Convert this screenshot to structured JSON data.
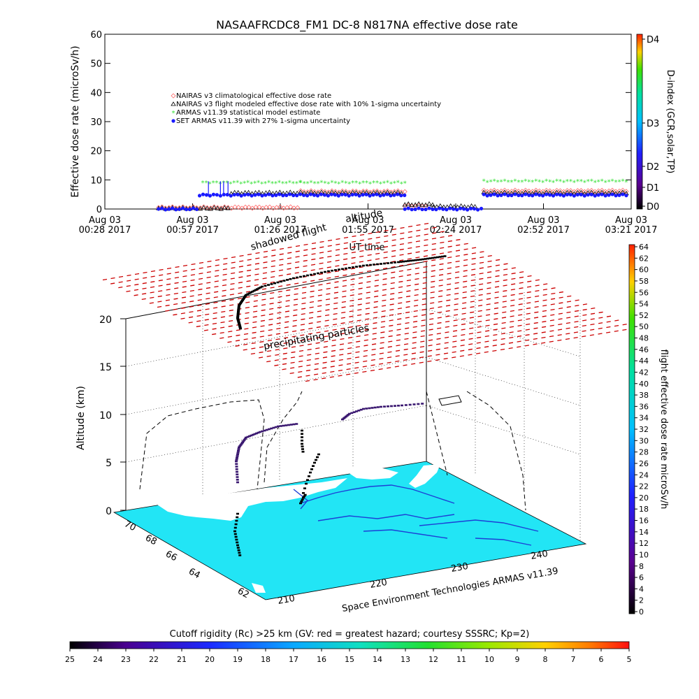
{
  "title": "NASAAFRCDC8_FM1 DC-8    N817NA effective dose rate",
  "xlabel": "UT time",
  "bottom_caption": "Cutoff rigidity (Rc) >25 km (GV: red = greatest hazard; courtesy SSSRC; Kp=2)",
  "credit": "Space Environment Technologies ARMAS v11.39",
  "annot_precip": "precipitating particles",
  "annot_flight": "altitude",
  "annot_shadow": "shadowed flight",
  "threed": {
    "zlabel": "Altitude (km)",
    "z_ticks": [
      "0",
      "5",
      "10",
      "15",
      "20"
    ],
    "lat_ticks": [
      "70",
      "68",
      "66",
      "64",
      "62"
    ],
    "lon_ticks": [
      "210",
      "220",
      "230",
      "240"
    ]
  },
  "colors": {
    "naires_clim": "#ff6a6a",
    "naires_flight": "#000000",
    "armas_stat": "#33e033",
    "set_armas": "#1a1aff",
    "grid_marker": "#cc0000",
    "ocean": "#22e5f5",
    "land": "#ffffff"
  },
  "chart_data": [
    {
      "type": "scatter",
      "ylabel": "Effective dose rate (microSv/h)",
      "ylim": [
        0,
        60
      ],
      "y_ticks": [
        "0",
        "10",
        "20",
        "30",
        "40",
        "50",
        "60"
      ],
      "x_ticks": [
        {
          "top": "Aug 03",
          "bottom": "00:28 2017"
        },
        {
          "top": "Aug 03",
          "bottom": "00:57 2017"
        },
        {
          "top": "Aug 03",
          "bottom": "01:26 2017"
        },
        {
          "top": "Aug 03",
          "bottom": "01:55 2017"
        },
        {
          "top": "Aug 03",
          "bottom": "02:24 2017"
        },
        {
          "top": "Aug 03",
          "bottom": "02:52 2017"
        },
        {
          "top": "Aug 03",
          "bottom": "03:21 2017"
        }
      ],
      "legend_position": "upper-left",
      "series": [
        {
          "name": "NAIRAS v3 climatological effective dose rate",
          "marker": "diamond",
          "segments": [
            [
              0.85,
              3.1,
              0.5
            ],
            [
              3.1,
              4.75,
              6.0
            ],
            [
              4.75,
              5.1,
              1.0
            ],
            [
              6.0,
              8.3,
              6.2
            ]
          ]
        },
        {
          "name": "NAIRAS v3 flight modeled effective dose rate with 10% 1-sigma uncertainty",
          "marker": "triangle",
          "segments": [
            [
              0.85,
              2.0,
              0.2
            ],
            [
              2.0,
              4.75,
              5.5
            ],
            [
              4.75,
              5.2,
              1.5
            ],
            [
              5.2,
              5.9,
              0.8
            ],
            [
              6.0,
              8.3,
              5.5
            ]
          ]
        },
        {
          "name": "ARMAS v11.39 statistical model estimate",
          "marker": "asterisk",
          "segments": [
            [
              1.55,
              3.1,
              9.0
            ],
            [
              3.1,
              4.75,
              9.0
            ],
            [
              6.0,
              8.3,
              9.5
            ]
          ]
        },
        {
          "name": "SET ARMAS v11.39 with 27% 1-sigma uncertainty",
          "marker": "dot",
          "segments": [
            [
              0.85,
              1.5,
              0.0
            ],
            [
              1.5,
              4.75,
              4.8
            ],
            [
              4.75,
              6.0,
              0.0
            ],
            [
              6.0,
              8.3,
              4.8
            ]
          ]
        }
      ],
      "y2label": "D-index (GCR,solar,TP)",
      "y2_ticks": [
        "D0",
        "D1",
        "D2",
        "D3",
        "D4"
      ]
    },
    {
      "type": "heatmap",
      "colorbar_label": "flight effective dose rate microSv/h",
      "range": [
        0,
        64
      ],
      "ticks": [
        "0",
        "2",
        "4",
        "6",
        "8",
        "10",
        "12",
        "14",
        "16",
        "18",
        "20",
        "22",
        "24",
        "26",
        "28",
        "30",
        "32",
        "34",
        "36",
        "38",
        "40",
        "42",
        "44",
        "46",
        "48",
        "50",
        "52",
        "54",
        "56",
        "58",
        "60",
        "62",
        "64"
      ]
    },
    {
      "type": "heatmap",
      "colorbar_label": "Cutoff rigidity (Rc)",
      "range": [
        25,
        5
      ],
      "ticks": [
        "25",
        "24",
        "23",
        "22",
        "21",
        "20",
        "19",
        "18",
        "17",
        "16",
        "15",
        "14",
        "13",
        "12",
        "11",
        "10",
        "9",
        "8",
        "7",
        "6",
        "5"
      ]
    }
  ]
}
